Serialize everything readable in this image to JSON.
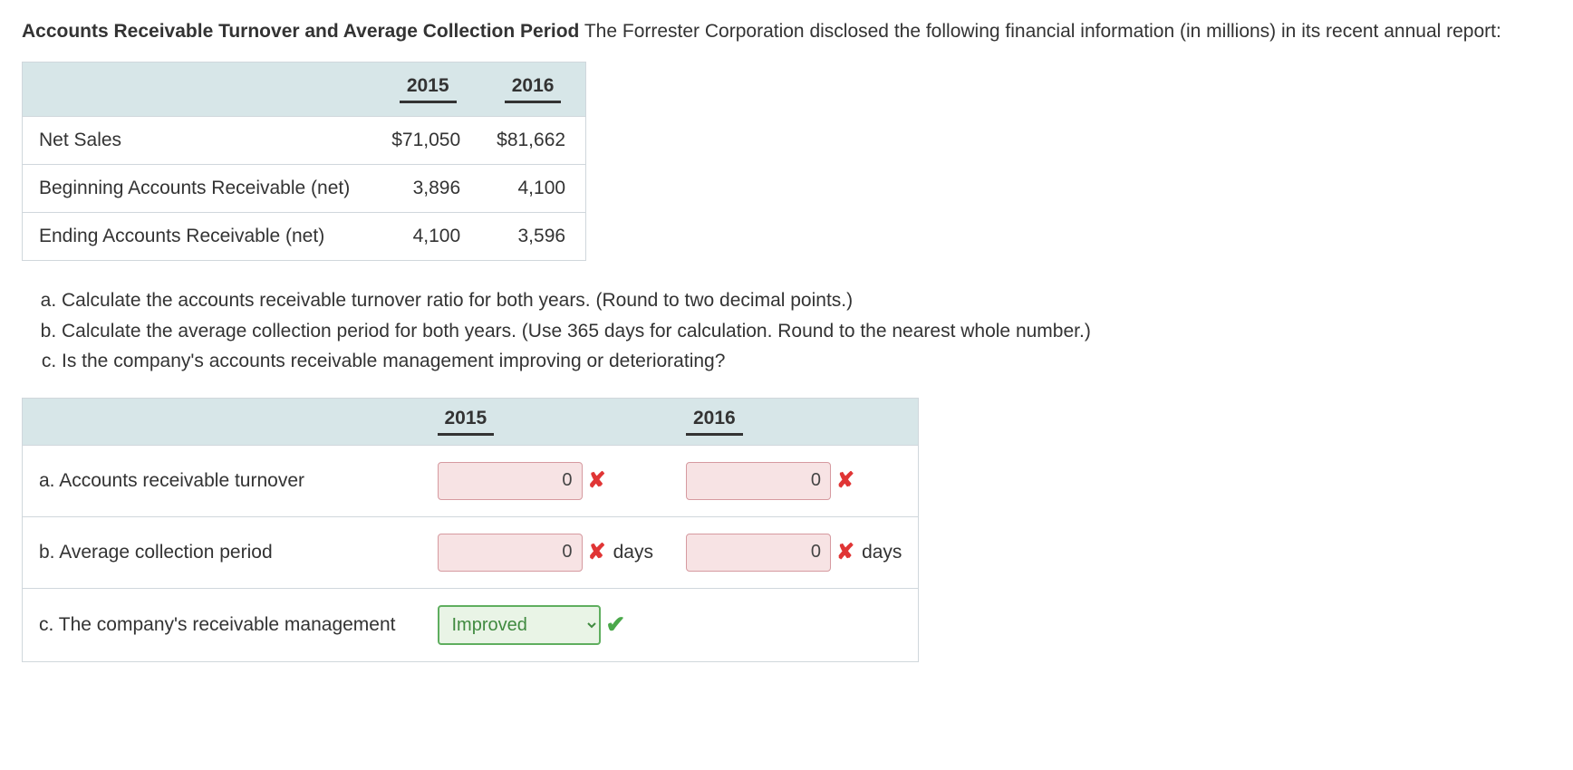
{
  "intro": {
    "title_bold": "Accounts Receivable Turnover and Average Collection Period",
    "body_after_bold": " The Forrester Corporation disclosed the following financial information (in millions) in its recent annual report:"
  },
  "data_table": {
    "headers": {
      "col1": "2015",
      "col2": "2016"
    },
    "rows": [
      {
        "label": "Net Sales",
        "c1": "$71,050",
        "c2": "$81,662"
      },
      {
        "label": "Beginning Accounts Receivable (net)",
        "c1": "3,896",
        "c2": "4,100"
      },
      {
        "label": "Ending Accounts Receivable (net)",
        "c1": "4,100",
        "c2": "3,596"
      }
    ]
  },
  "questions": [
    "Calculate the accounts receivable turnover ratio for both years. (Round to two decimal points.)",
    "Calculate the average collection period for both years. (Use 365 days for calculation. Round to the nearest whole number.)",
    "Is the company's accounts receivable management improving or deteriorating?"
  ],
  "answers_table": {
    "headers": {
      "col1": "2015",
      "col2": "2016"
    },
    "row_a": {
      "label": "a. Accounts receivable turnover",
      "v1": "0",
      "v2": "0"
    },
    "row_b": {
      "label": "b. Average collection period",
      "v1": "0",
      "v2": "0",
      "unit": "days"
    },
    "row_c": {
      "label": "c. The company's receivable management",
      "select_value": "Improved"
    }
  },
  "colors": {
    "header_bg": "#d7e6e8",
    "wrong_bg": "#f7e3e4",
    "wrong_border": "#d69aa0",
    "wrong_x": "#e03535",
    "correct_bg": "#e9f4e6",
    "correct_border": "#5fae5f",
    "correct_check": "#4aa84a"
  }
}
